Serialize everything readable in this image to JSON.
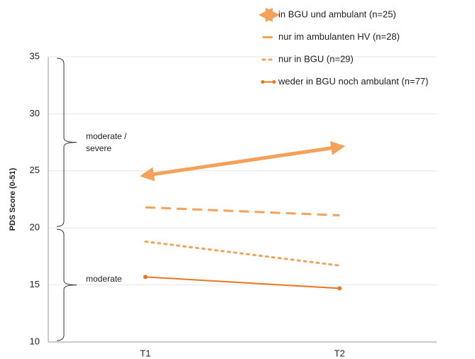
{
  "chart_data": {
    "type": "line",
    "ylabel": "PDS Score (0-51)",
    "categories": [
      "T1",
      "T2"
    ],
    "ylim": [
      10,
      35
    ],
    "yticks": [
      10,
      15,
      20,
      25,
      30,
      35
    ],
    "grid": true,
    "legend": "top-right",
    "series": [
      {
        "name": "in BGU und ambulant (n=25)",
        "color": "#f4a25a",
        "style": "arrow",
        "values": [
          24.6,
          27.1
        ]
      },
      {
        "name": "nur im ambulanten HV (n=28)",
        "color": "#f4a25a",
        "style": "dashed",
        "values": [
          21.8,
          21.1
        ]
      },
      {
        "name": "nur in BGU (n=29)",
        "color": "#f4a25a",
        "style": "dotted",
        "values": [
          18.8,
          16.7
        ]
      },
      {
        "name": "weder in BGU noch ambulant (n=77)",
        "color": "#e87722",
        "style": "solid",
        "values": [
          15.7,
          14.7
        ]
      }
    ],
    "annotations": [
      {
        "text": "moderate / severe",
        "from": 20,
        "to": 35
      },
      {
        "text": "moderate",
        "from": 10,
        "to": 20
      }
    ]
  }
}
